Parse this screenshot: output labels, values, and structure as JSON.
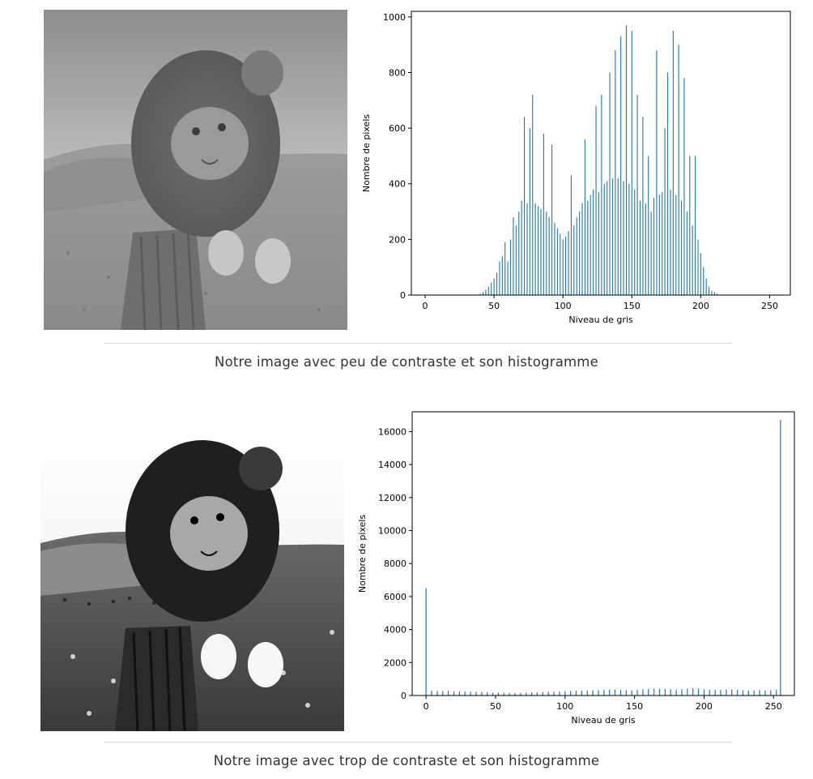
{
  "sections": [
    {
      "caption": "Notre image avec peu de contraste et son histogramme",
      "photo": {
        "alt": "lion-cat-photo-low-contrast",
        "tone": "low-contrast"
      }
    },
    {
      "caption": "Notre image avec trop de contraste et son histogramme",
      "photo": {
        "alt": "lion-cat-photo-high-contrast",
        "tone": "high-contrast"
      }
    }
  ],
  "colors": {
    "bar": "#1f77b4",
    "axis": "#000000",
    "divider": "#dcdcdc",
    "caption": "#333333"
  },
  "chart_data": [
    {
      "type": "bar",
      "title": "",
      "xlabel": "Niveau de gris",
      "ylabel": "Nombre de pixels",
      "xlim": [
        -10,
        265
      ],
      "ylim": [
        0,
        1020
      ],
      "xticks": [
        0,
        50,
        100,
        150,
        200,
        250
      ],
      "yticks": [
        0,
        200,
        400,
        600,
        800,
        1000
      ],
      "grid": false,
      "x": [
        40,
        42,
        44,
        46,
        48,
        50,
        52,
        54,
        56,
        58,
        60,
        62,
        64,
        66,
        68,
        70,
        72,
        74,
        76,
        78,
        80,
        82,
        84,
        86,
        88,
        90,
        92,
        94,
        96,
        98,
        100,
        102,
        104,
        106,
        108,
        110,
        112,
        114,
        116,
        118,
        120,
        122,
        124,
        126,
        128,
        130,
        132,
        134,
        136,
        138,
        140,
        142,
        144,
        146,
        148,
        150,
        152,
        154,
        156,
        158,
        160,
        162,
        164,
        166,
        168,
        170,
        172,
        174,
        176,
        178,
        180,
        182,
        184,
        186,
        188,
        190,
        192,
        194,
        196,
        198,
        200,
        202,
        204,
        206,
        208,
        210,
        212,
        214,
        216,
        218
      ],
      "values": [
        5,
        10,
        20,
        30,
        45,
        60,
        80,
        120,
        140,
        190,
        120,
        200,
        280,
        250,
        300,
        340,
        640,
        330,
        600,
        720,
        330,
        320,
        310,
        580,
        300,
        280,
        540,
        260,
        240,
        220,
        200,
        210,
        230,
        430,
        250,
        280,
        300,
        330,
        560,
        340,
        360,
        380,
        680,
        370,
        720,
        400,
        410,
        800,
        420,
        880,
        420,
        930,
        410,
        970,
        400,
        950,
        380,
        720,
        340,
        640,
        330,
        500,
        300,
        350,
        880,
        360,
        370,
        600,
        800,
        380,
        950,
        360,
        900,
        340,
        780,
        300,
        500,
        250,
        500,
        200,
        150,
        100,
        60,
        30,
        15,
        10,
        5,
        0,
        0,
        0
      ]
    },
    {
      "type": "bar",
      "title": "",
      "xlabel": "Niveau de gris",
      "ylabel": "Nombre de pixels",
      "xlim": [
        -10,
        265
      ],
      "ylim": [
        0,
        17200
      ],
      "xticks": [
        0,
        50,
        100,
        150,
        200,
        250
      ],
      "yticks": [
        0,
        2000,
        4000,
        6000,
        8000,
        10000,
        12000,
        14000,
        16000
      ],
      "grid": false,
      "x": [
        0,
        4,
        8,
        12,
        16,
        20,
        24,
        28,
        32,
        36,
        40,
        44,
        48,
        52,
        56,
        60,
        64,
        68,
        72,
        76,
        80,
        84,
        88,
        92,
        96,
        100,
        104,
        108,
        112,
        116,
        120,
        124,
        128,
        132,
        136,
        140,
        144,
        148,
        152,
        156,
        160,
        164,
        168,
        172,
        176,
        180,
        184,
        188,
        192,
        196,
        200,
        204,
        208,
        212,
        216,
        220,
        224,
        228,
        232,
        236,
        240,
        244,
        248,
        252,
        255
      ],
      "values": [
        6500,
        300,
        280,
        270,
        290,
        260,
        250,
        240,
        230,
        220,
        210,
        200,
        180,
        170,
        160,
        150,
        150,
        160,
        170,
        180,
        190,
        200,
        210,
        230,
        250,
        260,
        280,
        290,
        300,
        310,
        320,
        330,
        340,
        350,
        350,
        340,
        330,
        320,
        350,
        380,
        400,
        420,
        410,
        400,
        380,
        360,
        380,
        420,
        450,
        430,
        380,
        350,
        340,
        330,
        350,
        360,
        340,
        320,
        300,
        310,
        330,
        300,
        320,
        340,
        16700
      ]
    }
  ]
}
